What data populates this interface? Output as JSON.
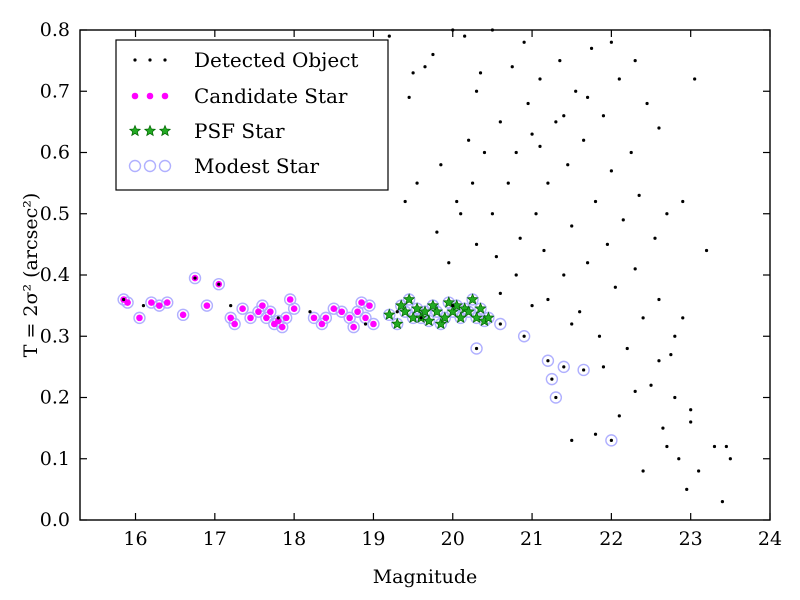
{
  "chart_data": {
    "type": "scatter",
    "xlabel": "Magnitude",
    "ylabel": "T = 2σ² (arcsec²)",
    "xlim": [
      15.3,
      24.0
    ],
    "ylim": [
      0.0,
      0.8
    ],
    "xticks": [
      "16",
      "17",
      "18",
      "19",
      "20",
      "21",
      "22",
      "23",
      "24"
    ],
    "yticks": [
      "0.0",
      "0.1",
      "0.2",
      "0.3",
      "0.4",
      "0.5",
      "0.6",
      "0.7",
      "0.8"
    ],
    "grid": false,
    "legend_position": "top-left",
    "legend": [
      {
        "label": "Detected Object",
        "marker": "black-dot"
      },
      {
        "label": "Candidate Star",
        "marker": "magenta-circle"
      },
      {
        "label": "PSF Star",
        "marker": "green-star"
      },
      {
        "label": "Modest Star",
        "marker": "lavender-ring"
      }
    ],
    "colors": {
      "detected": "#000000",
      "candidate": "#ff00ff",
      "psf_fill": "#22aa22",
      "psf_edge": "#006400",
      "modest": "#b0b0ff"
    },
    "series": [
      {
        "name": "Detected Object",
        "points": [
          [
            15.85,
            0.36
          ],
          [
            16.75,
            0.395
          ],
          [
            17.05,
            0.385
          ],
          [
            16.1,
            0.35
          ],
          [
            17.2,
            0.35
          ],
          [
            17.8,
            0.33
          ],
          [
            18.2,
            0.34
          ],
          [
            18.9,
            0.32
          ],
          [
            19.3,
            0.34
          ],
          [
            19.6,
            0.33
          ],
          [
            20.0,
            0.35
          ],
          [
            20.3,
            0.28
          ],
          [
            20.6,
            0.32
          ],
          [
            20.9,
            0.3
          ],
          [
            21.2,
            0.26
          ],
          [
            21.25,
            0.23
          ],
          [
            21.3,
            0.2
          ],
          [
            21.4,
            0.25
          ],
          [
            21.65,
            0.245
          ],
          [
            22.0,
            0.13
          ],
          [
            19.2,
            0.79
          ],
          [
            19.4,
            0.52
          ],
          [
            19.55,
            0.55
          ],
          [
            19.5,
            0.73
          ],
          [
            19.65,
            0.74
          ],
          [
            19.75,
            0.76
          ],
          [
            19.45,
            0.69
          ],
          [
            19.85,
            0.58
          ],
          [
            20.0,
            0.8
          ],
          [
            20.15,
            0.79
          ],
          [
            20.2,
            0.62
          ],
          [
            20.1,
            0.5
          ],
          [
            20.25,
            0.55
          ],
          [
            20.3,
            0.7
          ],
          [
            20.4,
            0.6
          ],
          [
            20.35,
            0.73
          ],
          [
            20.5,
            0.8
          ],
          [
            20.5,
            0.5
          ],
          [
            20.6,
            0.65
          ],
          [
            20.7,
            0.55
          ],
          [
            20.75,
            0.74
          ],
          [
            20.8,
            0.6
          ],
          [
            20.85,
            0.46
          ],
          [
            20.9,
            0.78
          ],
          [
            20.95,
            0.68
          ],
          [
            21.0,
            0.63
          ],
          [
            21.05,
            0.5
          ],
          [
            21.1,
            0.72
          ],
          [
            21.15,
            0.44
          ],
          [
            21.2,
            0.55
          ],
          [
            21.2,
            0.36
          ],
          [
            21.3,
            0.65
          ],
          [
            21.35,
            0.75
          ],
          [
            21.4,
            0.4
          ],
          [
            21.45,
            0.58
          ],
          [
            21.5,
            0.48
          ],
          [
            21.55,
            0.7
          ],
          [
            21.6,
            0.34
          ],
          [
            21.65,
            0.62
          ],
          [
            21.7,
            0.42
          ],
          [
            21.75,
            0.77
          ],
          [
            21.8,
            0.52
          ],
          [
            21.85,
            0.3
          ],
          [
            21.9,
            0.66
          ],
          [
            21.95,
            0.45
          ],
          [
            22.0,
            0.57
          ],
          [
            22.05,
            0.38
          ],
          [
            22.1,
            0.72
          ],
          [
            22.15,
            0.49
          ],
          [
            22.2,
            0.28
          ],
          [
            22.25,
            0.6
          ],
          [
            22.3,
            0.41
          ],
          [
            22.35,
            0.53
          ],
          [
            22.4,
            0.33
          ],
          [
            22.45,
            0.68
          ],
          [
            22.5,
            0.22
          ],
          [
            22.55,
            0.46
          ],
          [
            22.6,
            0.36
          ],
          [
            22.65,
            0.15
          ],
          [
            22.7,
            0.5
          ],
          [
            22.75,
            0.27
          ],
          [
            22.8,
            0.2
          ],
          [
            22.85,
            0.1
          ],
          [
            22.9,
            0.33
          ],
          [
            22.95,
            0.05
          ],
          [
            23.0,
            0.18
          ],
          [
            23.05,
            0.72
          ],
          [
            23.1,
            0.08
          ],
          [
            23.2,
            0.44
          ],
          [
            23.3,
            0.12
          ],
          [
            23.4,
            0.03
          ],
          [
            23.5,
            0.1
          ],
          [
            23.45,
            0.12
          ],
          [
            22.9,
            0.52
          ],
          [
            22.6,
            0.64
          ],
          [
            22.3,
            0.75
          ],
          [
            22.0,
            0.78
          ],
          [
            21.7,
            0.69
          ],
          [
            21.4,
            0.66
          ],
          [
            21.1,
            0.61
          ],
          [
            20.8,
            0.4
          ],
          [
            20.55,
            0.43
          ],
          [
            20.3,
            0.45
          ],
          [
            20.05,
            0.52
          ],
          [
            19.8,
            0.47
          ],
          [
            19.95,
            0.42
          ],
          [
            20.6,
            0.37
          ],
          [
            21.0,
            0.35
          ],
          [
            21.5,
            0.32
          ],
          [
            21.9,
            0.25
          ],
          [
            22.3,
            0.21
          ],
          [
            22.6,
            0.26
          ],
          [
            22.8,
            0.3
          ],
          [
            22.4,
            0.08
          ],
          [
            22.1,
            0.17
          ],
          [
            21.8,
            0.14
          ],
          [
            21.5,
            0.13
          ],
          [
            22.7,
            0.12
          ],
          [
            23.0,
            0.16
          ]
        ]
      },
      {
        "name": "Candidate Star",
        "points": [
          [
            15.85,
            0.36
          ],
          [
            15.9,
            0.355
          ],
          [
            16.05,
            0.33
          ],
          [
            16.2,
            0.355
          ],
          [
            16.3,
            0.35
          ],
          [
            16.4,
            0.355
          ],
          [
            16.6,
            0.335
          ],
          [
            16.75,
            0.395
          ],
          [
            16.9,
            0.35
          ],
          [
            17.05,
            0.385
          ],
          [
            17.2,
            0.33
          ],
          [
            17.25,
            0.32
          ],
          [
            17.35,
            0.345
          ],
          [
            17.45,
            0.33
          ],
          [
            17.55,
            0.34
          ],
          [
            17.6,
            0.35
          ],
          [
            17.65,
            0.33
          ],
          [
            17.7,
            0.34
          ],
          [
            17.75,
            0.32
          ],
          [
            17.8,
            0.325
          ],
          [
            17.85,
            0.315
          ],
          [
            17.9,
            0.33
          ],
          [
            17.95,
            0.36
          ],
          [
            18.0,
            0.345
          ],
          [
            18.25,
            0.33
          ],
          [
            18.35,
            0.32
          ],
          [
            18.4,
            0.33
          ],
          [
            18.5,
            0.345
          ],
          [
            18.6,
            0.34
          ],
          [
            18.7,
            0.33
          ],
          [
            18.75,
            0.315
          ],
          [
            18.8,
            0.34
          ],
          [
            18.85,
            0.355
          ],
          [
            18.9,
            0.33
          ],
          [
            18.95,
            0.35
          ],
          [
            19.0,
            0.32
          ]
        ]
      },
      {
        "name": "PSF Star",
        "points": [
          [
            19.2,
            0.335
          ],
          [
            19.3,
            0.32
          ],
          [
            19.35,
            0.35
          ],
          [
            19.4,
            0.34
          ],
          [
            19.45,
            0.36
          ],
          [
            19.5,
            0.33
          ],
          [
            19.55,
            0.345
          ],
          [
            19.6,
            0.33
          ],
          [
            19.65,
            0.34
          ],
          [
            19.7,
            0.325
          ],
          [
            19.75,
            0.35
          ],
          [
            19.8,
            0.34
          ],
          [
            19.85,
            0.32
          ],
          [
            19.9,
            0.33
          ],
          [
            19.95,
            0.355
          ],
          [
            20.0,
            0.34
          ],
          [
            20.05,
            0.35
          ],
          [
            20.1,
            0.33
          ],
          [
            20.15,
            0.345
          ],
          [
            20.2,
            0.34
          ],
          [
            20.25,
            0.36
          ],
          [
            20.3,
            0.33
          ],
          [
            20.35,
            0.345
          ],
          [
            20.4,
            0.325
          ],
          [
            20.45,
            0.33
          ]
        ]
      },
      {
        "name": "Modest Star",
        "points": [
          [
            15.85,
            0.36
          ],
          [
            15.9,
            0.355
          ],
          [
            16.05,
            0.33
          ],
          [
            16.2,
            0.355
          ],
          [
            16.3,
            0.35
          ],
          [
            16.4,
            0.355
          ],
          [
            16.6,
            0.335
          ],
          [
            16.75,
            0.395
          ],
          [
            16.9,
            0.35
          ],
          [
            17.05,
            0.385
          ],
          [
            17.2,
            0.33
          ],
          [
            17.25,
            0.32
          ],
          [
            17.35,
            0.345
          ],
          [
            17.45,
            0.33
          ],
          [
            17.55,
            0.34
          ],
          [
            17.6,
            0.35
          ],
          [
            17.65,
            0.33
          ],
          [
            17.7,
            0.34
          ],
          [
            17.75,
            0.32
          ],
          [
            17.8,
            0.325
          ],
          [
            17.85,
            0.315
          ],
          [
            17.9,
            0.33
          ],
          [
            17.95,
            0.36
          ],
          [
            18.0,
            0.345
          ],
          [
            18.25,
            0.33
          ],
          [
            18.35,
            0.32
          ],
          [
            18.4,
            0.33
          ],
          [
            18.5,
            0.345
          ],
          [
            18.6,
            0.34
          ],
          [
            18.7,
            0.33
          ],
          [
            18.75,
            0.315
          ],
          [
            18.8,
            0.34
          ],
          [
            18.85,
            0.355
          ],
          [
            18.9,
            0.33
          ],
          [
            18.95,
            0.35
          ],
          [
            19.0,
            0.32
          ],
          [
            19.2,
            0.335
          ],
          [
            19.3,
            0.32
          ],
          [
            19.35,
            0.35
          ],
          [
            19.4,
            0.34
          ],
          [
            19.45,
            0.36
          ],
          [
            19.5,
            0.33
          ],
          [
            19.55,
            0.345
          ],
          [
            19.6,
            0.33
          ],
          [
            19.65,
            0.34
          ],
          [
            19.7,
            0.325
          ],
          [
            19.75,
            0.35
          ],
          [
            19.8,
            0.34
          ],
          [
            19.85,
            0.32
          ],
          [
            19.9,
            0.33
          ],
          [
            19.95,
            0.355
          ],
          [
            20.0,
            0.34
          ],
          [
            20.05,
            0.35
          ],
          [
            20.1,
            0.33
          ],
          [
            20.15,
            0.345
          ],
          [
            20.2,
            0.34
          ],
          [
            20.25,
            0.36
          ],
          [
            20.3,
            0.33
          ],
          [
            20.35,
            0.345
          ],
          [
            20.4,
            0.325
          ],
          [
            20.45,
            0.33
          ],
          [
            20.3,
            0.28
          ],
          [
            20.6,
            0.32
          ],
          [
            20.9,
            0.3
          ],
          [
            21.2,
            0.26
          ],
          [
            21.25,
            0.23
          ],
          [
            21.3,
            0.2
          ],
          [
            21.4,
            0.25
          ],
          [
            21.65,
            0.245
          ],
          [
            22.0,
            0.13
          ]
        ]
      }
    ]
  }
}
